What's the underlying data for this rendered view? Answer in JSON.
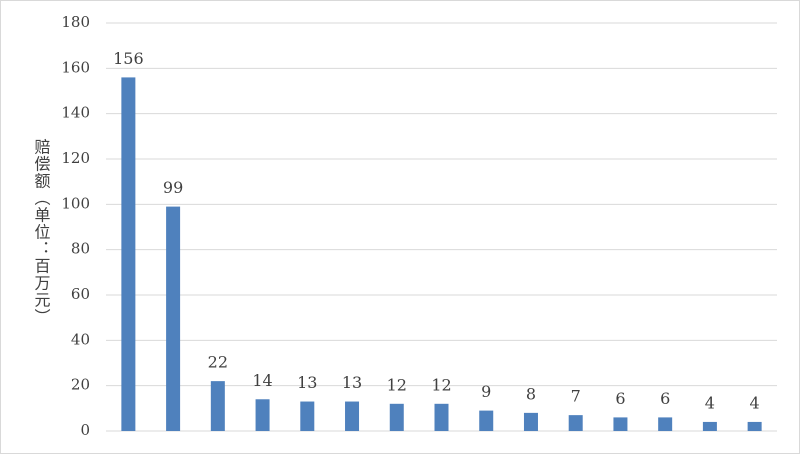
{
  "chart_data": {
    "type": "bar",
    "y_label": "赔偿额（单位：百万元）",
    "categories": [
      null,
      null,
      null,
      null,
      null,
      null,
      null,
      null,
      null,
      null,
      null,
      null,
      null,
      null,
      null
    ],
    "values": [
      156,
      99,
      22,
      14,
      13,
      13,
      12,
      12,
      9,
      8,
      7,
      6,
      6,
      4,
      4
    ],
    "color": "#4f81bd",
    "ylim": [
      0,
      180
    ],
    "yticks": [
      0,
      20,
      40,
      60,
      80,
      100,
      120,
      140,
      160,
      180
    ],
    "grid": true
  }
}
